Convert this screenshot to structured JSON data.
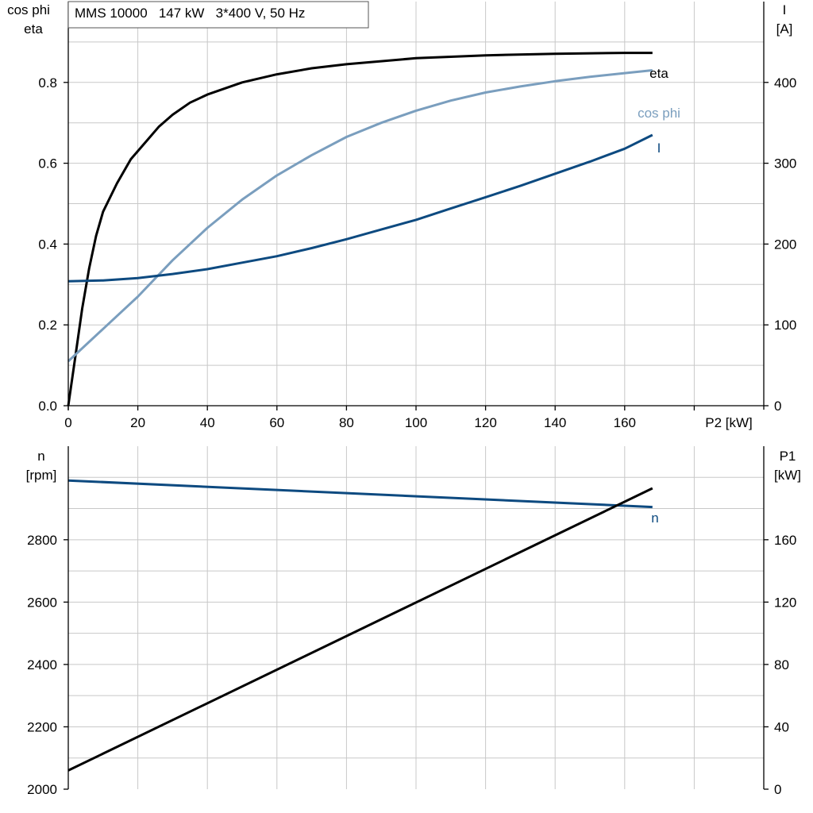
{
  "colors": {
    "eta": "#000000",
    "cos_phi": "#7a9ebe",
    "current": "#0d4a80",
    "speed": "#0d4a80",
    "p1": "#000000",
    "grid": "#c8c8c8"
  },
  "chart_data": [
    {
      "type": "line",
      "title": "MMS 10000   147 kW   3*400 V, 50 Hz",
      "xlabel": "P2 [kW]",
      "ylabel_left": [
        "cos phi",
        "eta"
      ],
      "ylabel_right": [
        "I",
        "[A]"
      ],
      "xlim": [
        0,
        200
      ],
      "ylim_left": [
        0,
        1.0
      ],
      "ylim_right": [
        0,
        500
      ],
      "x_ticks": [
        0,
        20,
        40,
        60,
        80,
        100,
        120,
        140,
        160
      ],
      "y_ticks_left": [
        "0.0",
        "0.2",
        "0.4",
        "0.6",
        "0.8"
      ],
      "y_ticks_right": [
        "0",
        "100",
        "200",
        "300",
        "400"
      ],
      "grid": true,
      "series": [
        {
          "name": "eta",
          "axis": "left",
          "x": [
            0,
            2,
            4,
            6,
            8,
            10,
            14,
            18,
            22,
            26,
            30,
            35,
            40,
            50,
            60,
            70,
            80,
            100,
            120,
            140,
            160,
            168
          ],
          "y": [
            0.0,
            0.12,
            0.24,
            0.34,
            0.42,
            0.48,
            0.55,
            0.61,
            0.65,
            0.69,
            0.72,
            0.75,
            0.77,
            0.8,
            0.82,
            0.835,
            0.845,
            0.86,
            0.867,
            0.871,
            0.873,
            0.873
          ]
        },
        {
          "name": "cos phi",
          "axis": "left",
          "x": [
            0,
            10,
            20,
            30,
            40,
            50,
            60,
            70,
            80,
            90,
            100,
            110,
            120,
            130,
            140,
            150,
            160,
            168
          ],
          "y": [
            0.11,
            0.19,
            0.27,
            0.36,
            0.44,
            0.51,
            0.57,
            0.62,
            0.665,
            0.7,
            0.73,
            0.755,
            0.775,
            0.79,
            0.803,
            0.814,
            0.823,
            0.83
          ]
        },
        {
          "name": "I",
          "axis": "right",
          "x": [
            0,
            10,
            20,
            30,
            40,
            50,
            60,
            70,
            80,
            90,
            100,
            110,
            120,
            130,
            140,
            150,
            160,
            168
          ],
          "y": [
            154,
            155,
            158,
            163,
            169,
            177,
            185,
            195,
            206,
            218,
            230,
            244,
            258,
            272,
            287,
            302,
            318,
            335
          ]
        }
      ]
    },
    {
      "type": "line",
      "xlim": [
        0,
        200
      ],
      "ylabel_left": [
        "n",
        "[rpm]"
      ],
      "ylabel_right": [
        "P1",
        "[kW]"
      ],
      "ylim_left": [
        2000,
        3100
      ],
      "ylim_right": [
        0,
        220
      ],
      "y_ticks_left": [
        "2000",
        "2200",
        "2400",
        "2600",
        "2800"
      ],
      "y_ticks_right": [
        "0",
        "40",
        "80",
        "120",
        "160"
      ],
      "grid": true,
      "series": [
        {
          "name": "n",
          "axis": "left",
          "x": [
            0,
            168
          ],
          "y": [
            2990,
            2905
          ]
        },
        {
          "name": "P1",
          "axis": "right",
          "x": [
            0,
            168
          ],
          "y": [
            12,
            193
          ]
        }
      ]
    }
  ]
}
